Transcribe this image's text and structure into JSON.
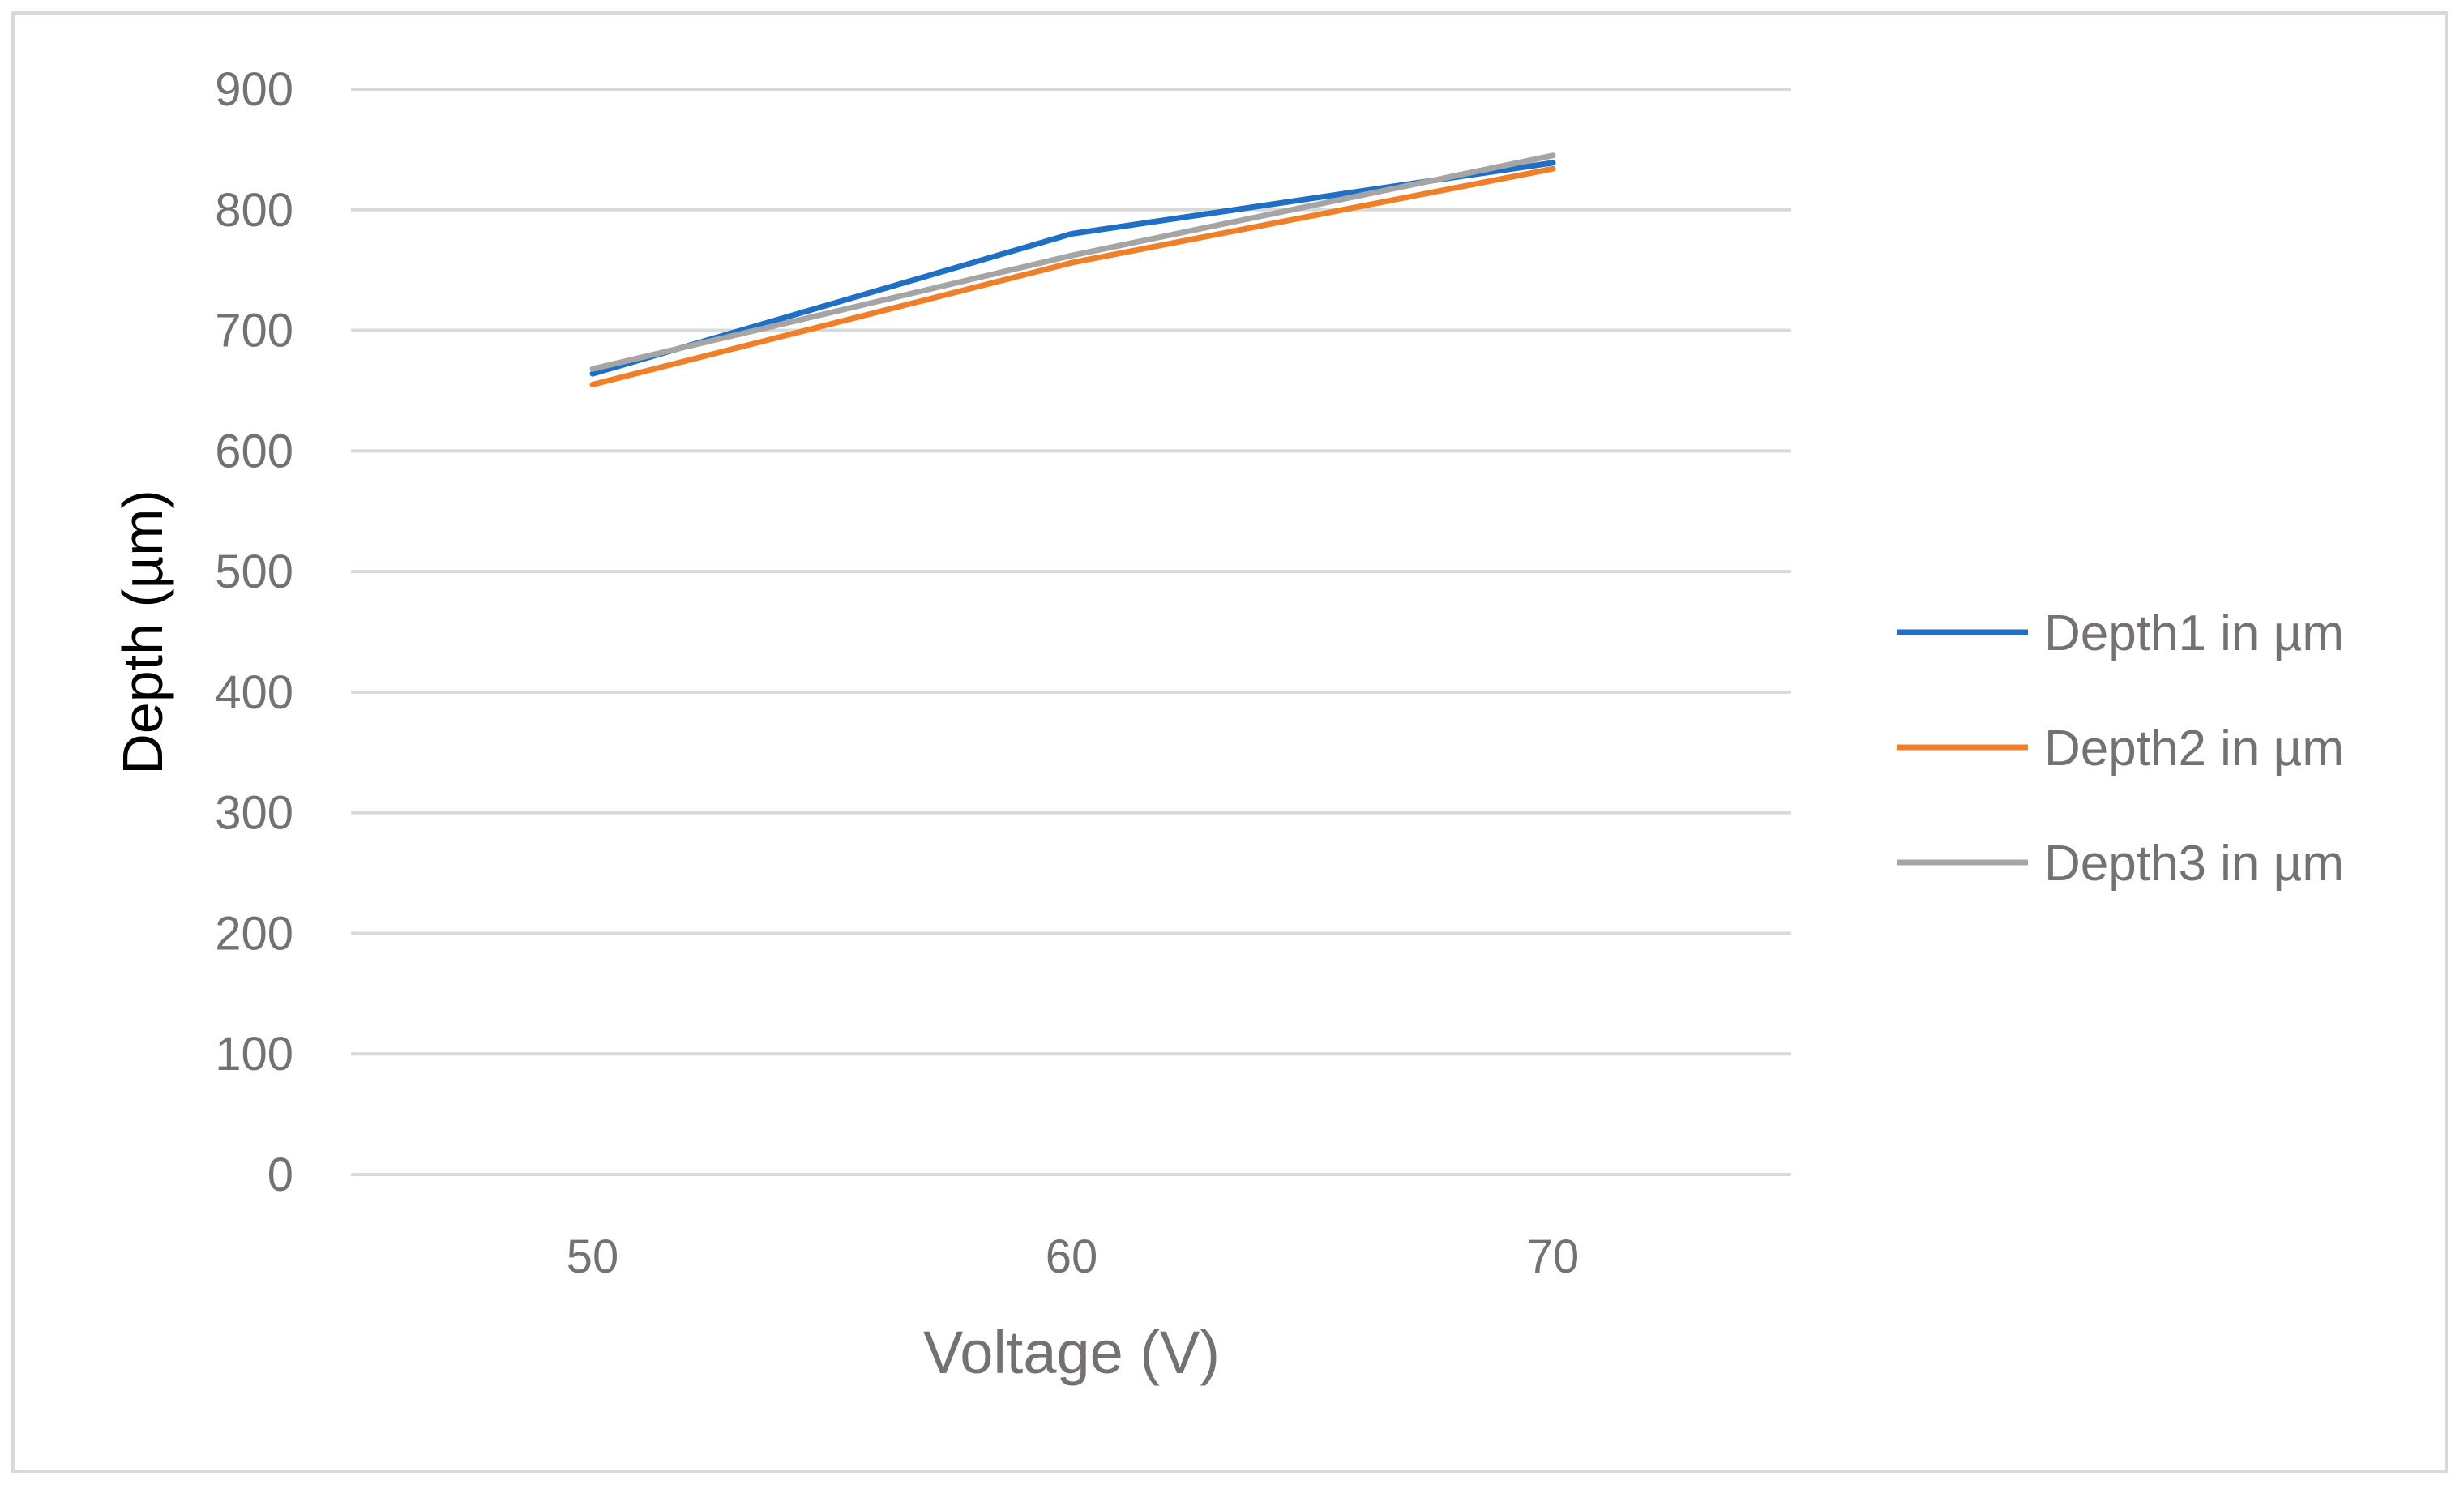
{
  "chart_data": {
    "type": "line",
    "title": "",
    "xlabel": "Voltage (V)",
    "ylabel": "Depth  (µm)",
    "x": [
      50,
      60,
      70
    ],
    "x_tick_labels": [
      "50",
      "60",
      "70"
    ],
    "y_tick_labels": [
      "0",
      "100",
      "200",
      "300",
      "400",
      "500",
      "600",
      "700",
      "800",
      "900"
    ],
    "ylim": [
      0,
      900
    ],
    "y_ticks": [
      0,
      100,
      200,
      300,
      400,
      500,
      600,
      700,
      800,
      900
    ],
    "grid": "horizontal",
    "legend_position": "right",
    "series": [
      {
        "name": "Depth1 in µm",
        "color": "#1f6fc5",
        "values": [
          664,
          780,
          839
        ]
      },
      {
        "name": "Depth2 in µm",
        "color": "#f07f2a",
        "values": [
          655,
          756,
          834
        ]
      },
      {
        "name": "Depth3 in µm",
        "color": "#a5a5a5",
        "values": [
          668,
          762,
          845
        ]
      }
    ]
  }
}
